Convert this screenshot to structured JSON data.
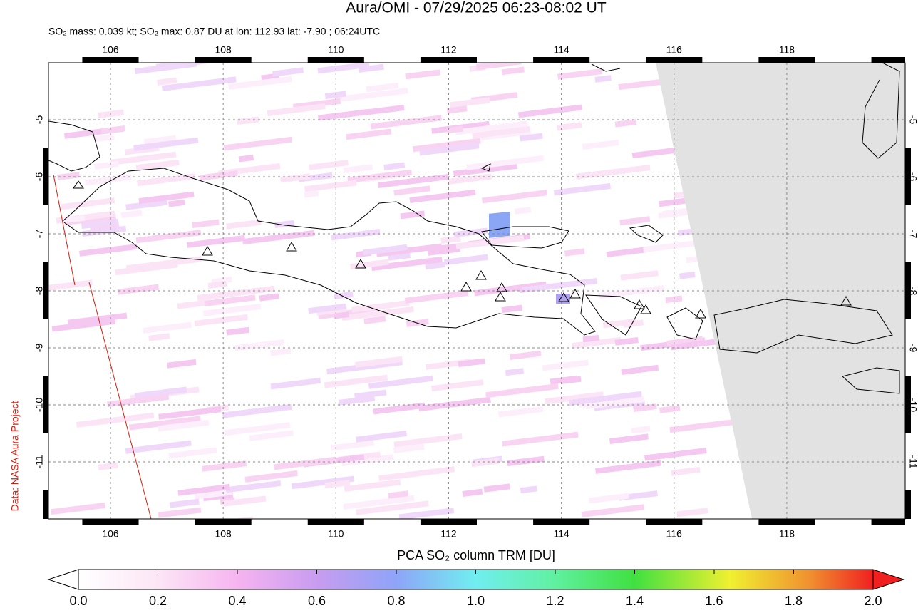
{
  "title": "Aura/OMI - 07/29/2025 06:23-08:02 UT",
  "subtitle": "SO₂ mass: 0.039 kt; SO₂ max: 0.87 DU at lon: 112.93 lat: -7.90 ; 06:24UTC",
  "credit": "Data: NASA Aura Project",
  "map": {
    "xlim": [
      104.9,
      120.1
    ],
    "ylim": [
      -12,
      -4
    ],
    "xticks": [
      106,
      108,
      110,
      112,
      114,
      116,
      118
    ],
    "yticks": [
      -5,
      -6,
      -7,
      -8,
      -9,
      -10,
      -11
    ]
  },
  "colorbar": {
    "label": "PCA SO₂ column TRM [DU]",
    "lim": [
      0,
      2
    ],
    "ticks": [
      {
        "value": 0,
        "label": "0.0"
      },
      0.2,
      0.4,
      0.6,
      0.8,
      {
        "value": 1,
        "label": "1.0"
      },
      1.2,
      1.4,
      1.6,
      1.8,
      {
        "value": 2,
        "label": "2.0"
      }
    ]
  }
}
